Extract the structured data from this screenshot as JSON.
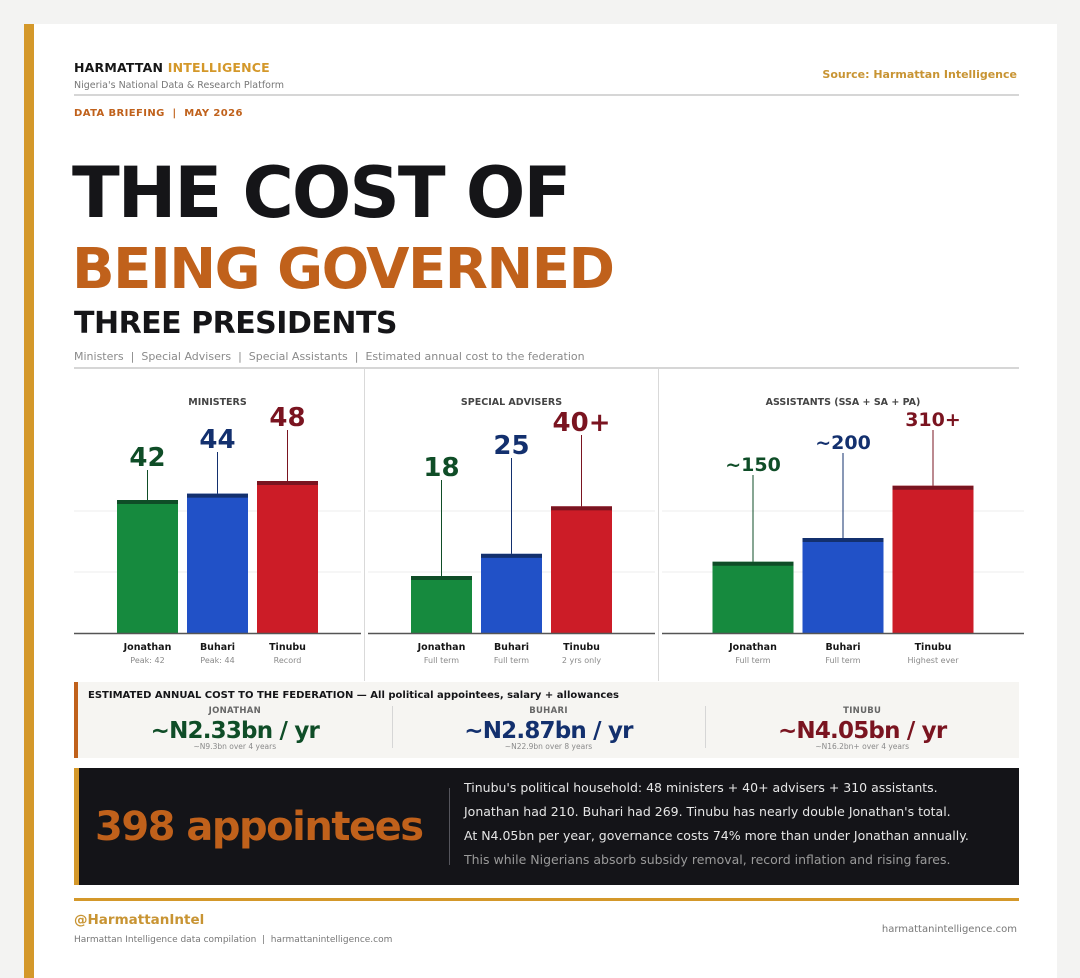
{
  "header": {
    "brand_primary": "HARMATTAN",
    "brand_accent": "INTELLIGENCE",
    "brand_subtitle": "Nigeria's National Data & Research Platform",
    "source": "Source: Harmattan Intelligence",
    "briefing": "DATA BRIEFING  |  MAY 2026"
  },
  "title": {
    "line1": "THE COST OF",
    "line2": "BEING GOVERNED",
    "line3": "THREE PRESIDENTS",
    "subtitle": "Ministers  |  Special Advisers  |  Special Assistants  |  Estimated annual cost to the federation"
  },
  "colors": {
    "jonathan": "#168a3e",
    "jonathan_dark": "#0f4d27",
    "buhari": "#2151c7",
    "buhari_dark": "#13306e",
    "tinubu": "#cc1c27",
    "tinubu_dark": "#7a1420",
    "accent_orange": "#c0611b",
    "accent_gold": "#d4982a"
  },
  "chart_data": [
    {
      "type": "bar",
      "title": "MINISTERS",
      "categories": [
        "Jonathan",
        "Buhari",
        "Tinubu"
      ],
      "sublabels": [
        "Peak: 42",
        "Peak: 44",
        "Record"
      ],
      "values": [
        42,
        44,
        48
      ],
      "value_labels": [
        "42",
        "44",
        "48"
      ],
      "ylim": [
        0,
        60
      ]
    },
    {
      "type": "bar",
      "title": "SPECIAL ADVISERS",
      "categories": [
        "Jonathan",
        "Buhari",
        "Tinubu"
      ],
      "sublabels": [
        "Full term",
        "Full term",
        "2 yrs only"
      ],
      "values": [
        18,
        25,
        40
      ],
      "value_labels": [
        "18",
        "25",
        "40+"
      ],
      "ylim": [
        0,
        60
      ]
    },
    {
      "type": "bar",
      "title": "ASSISTANTS  (SSA + SA + PA)",
      "categories": [
        "Jonathan",
        "Buhari",
        "Tinubu"
      ],
      "sublabels": [
        "Full term",
        "Full term",
        "Highest ever"
      ],
      "values": [
        150,
        200,
        310
      ],
      "value_labels": [
        "~150",
        "~200",
        "310+"
      ],
      "ylim": [
        0,
        400
      ]
    }
  ],
  "cost": {
    "heading": "ESTIMATED ANNUAL COST TO THE FEDERATION  —  All political appointees, salary + allowances",
    "items": [
      {
        "name": "JONATHAN",
        "value": "~N2.33bn / yr",
        "note": "~N9.3bn over 4 years"
      },
      {
        "name": "BUHARI",
        "value": "~N2.87bn / yr",
        "note": "~N22.9bn over 8 years"
      },
      {
        "name": "TINUBU",
        "value": "~N4.05bn / yr",
        "note": "~N16.2bn+ over 4 years"
      }
    ]
  },
  "summary": {
    "big_stat": "398 appointees",
    "lines": [
      "Tinubu's political household: 48 ministers + 40+ advisers + 310 assistants.",
      "Jonathan had 210. Buhari had 269. Tinubu has nearly double Jonathan's total.",
      "At N4.05bn per year, governance costs 74% more than under Jonathan annually.",
      "This while Nigerians absorb subsidy removal, record inflation and rising fares."
    ]
  },
  "footer": {
    "handle": "@HarmattanIntel",
    "credit": "Harmattan Intelligence data compilation  |  harmattanintelligence.com",
    "site": "harmattanintelligence.com"
  }
}
